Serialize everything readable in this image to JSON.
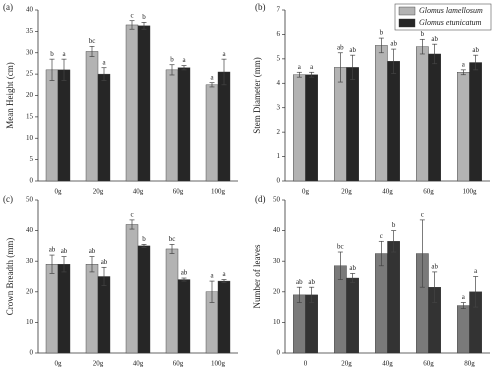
{
  "chart_data": [
    {
      "type": "bar",
      "panel_label": "(a)",
      "y_label": "Mean Height (cm)",
      "categories": [
        "0g",
        "20g",
        "40g",
        "60g",
        "100g"
      ],
      "ylim": [
        0,
        40
      ],
      "yticks": [
        0,
        5,
        10,
        15,
        20,
        25,
        30,
        35,
        40
      ],
      "series": [
        {
          "color": "#b3b3b3",
          "values": [
            26,
            30.3,
            36.5,
            26,
            22.5
          ],
          "errors": [
            2.5,
            1.2,
            1,
            1.2,
            0.5
          ],
          "letters": [
            "b",
            "bc",
            "c",
            "b",
            "a"
          ]
        },
        {
          "color": "#262626",
          "values": [
            26,
            25,
            36.3,
            26.5,
            25.5
          ],
          "errors": [
            2.5,
            1.5,
            0.8,
            0.5,
            3
          ],
          "letters": [
            "a",
            "a",
            "b",
            "a",
            "a"
          ]
        }
      ]
    },
    {
      "type": "bar",
      "panel_label": "(b)",
      "y_label": "Stem Diameter (mm)",
      "categories": [
        "0g",
        "20g",
        "40g",
        "60g",
        "100g"
      ],
      "ylim": [
        0,
        7
      ],
      "yticks": [
        0,
        1,
        2,
        3,
        4,
        5,
        6,
        7
      ],
      "legend": "upper right",
      "series": [
        {
          "name": "Glomus lamellosum",
          "color": "#b3b3b3",
          "values": [
            4.35,
            4.65,
            5.55,
            5.5,
            4.45
          ],
          "errors": [
            0.1,
            0.6,
            0.3,
            0.3,
            0.1
          ],
          "letters": [
            "a",
            "ab",
            "b",
            "b",
            "a"
          ]
        },
        {
          "name": "Glomus etunicatum",
          "color": "#262626",
          "values": [
            4.35,
            4.65,
            4.9,
            5.2,
            4.85
          ],
          "errors": [
            0.1,
            0.5,
            0.5,
            0.4,
            0.3
          ],
          "letters": [
            "a",
            "ab",
            "ab",
            "ab",
            "ab"
          ]
        }
      ]
    },
    {
      "type": "bar",
      "panel_label": "(c)",
      "y_label": "Crown Breadth (mm)",
      "categories": [
        "0g",
        "20g",
        "40g",
        "60g",
        "100g"
      ],
      "ylim": [
        0,
        50
      ],
      "yticks": [
        0,
        10,
        20,
        30,
        40,
        50
      ],
      "series": [
        {
          "color": "#b3b3b3",
          "values": [
            29,
            29,
            42,
            34,
            20
          ],
          "errors": [
            3,
            2.5,
            1.5,
            1.5,
            3.5
          ],
          "letters": [
            "ab",
            "ab",
            "c",
            "bc",
            "a"
          ]
        },
        {
          "color": "#262626",
          "values": [
            29,
            25,
            35,
            24,
            23.5
          ],
          "errors": [
            2.5,
            3,
            0.5,
            0.5,
            0.5
          ],
          "letters": [
            "ab",
            "ab",
            "b",
            "ab",
            "a"
          ]
        }
      ]
    },
    {
      "type": "bar",
      "panel_label": "(d)",
      "y_label": "Number of leaves",
      "categories": [
        "0",
        "20g",
        "40g",
        "60g",
        "80g"
      ],
      "ylim": [
        0,
        50
      ],
      "yticks": [
        0,
        10,
        20,
        30,
        40,
        50
      ],
      "series": [
        {
          "color": "#7a7a7a",
          "values": [
            19,
            28.5,
            32.5,
            32.5,
            15.5
          ],
          "errors": [
            2.5,
            4.5,
            4,
            11,
            1
          ],
          "letters": [
            "ab",
            "bc",
            "c",
            "c",
            "a"
          ]
        },
        {
          "color": "#333333",
          "values": [
            19,
            24.5,
            36.5,
            21.5,
            20
          ],
          "errors": [
            2.5,
            1.5,
            3.5,
            5,
            5
          ],
          "letters": [
            "ab",
            "ab",
            "b",
            "ab",
            "a"
          ]
        }
      ]
    }
  ]
}
